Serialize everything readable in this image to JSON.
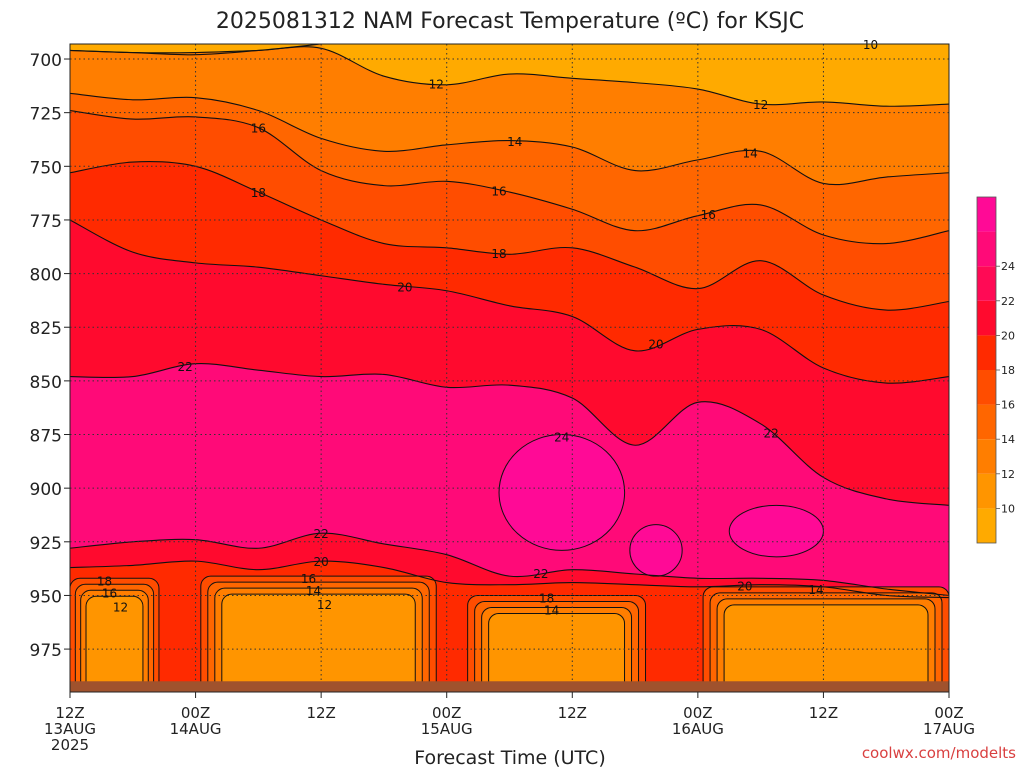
{
  "title": "2025081312 NAM Forecast Temperature (ºC) for KSJC",
  "xlabel": "Forecast Time (UTC)",
  "credit": "coolwx.com/modelts",
  "chart_data": {
    "type": "heatmap",
    "title": "2025081312 NAM Forecast Temperature (ºC) for KSJC",
    "xlabel": "Forecast Time (UTC)",
    "ylabel": "",
    "y_axis": "pressure (hPa), increasing downward",
    "ylim": [
      995,
      693
    ],
    "xlim_hours": [
      0,
      84
    ],
    "grid": true,
    "x_ticks": [
      {
        "h": 0,
        "l1": "12Z",
        "l2": "13AUG",
        "l3": "2025"
      },
      {
        "h": 12,
        "l1": "00Z",
        "l2": "14AUG",
        "l3": ""
      },
      {
        "h": 24,
        "l1": "12Z",
        "l2": "",
        "l3": ""
      },
      {
        "h": 36,
        "l1": "00Z",
        "l2": "15AUG",
        "l3": ""
      },
      {
        "h": 48,
        "l1": "12Z",
        "l2": "",
        "l3": ""
      },
      {
        "h": 60,
        "l1": "00Z",
        "l2": "16AUG",
        "l3": ""
      },
      {
        "h": 72,
        "l1": "12Z",
        "l2": "",
        "l3": ""
      },
      {
        "h": 84,
        "l1": "00Z",
        "l2": "17AUG",
        "l3": ""
      }
    ],
    "y_ticks": [
      700,
      725,
      750,
      775,
      800,
      825,
      850,
      875,
      900,
      925,
      950,
      975
    ],
    "colorbar": {
      "labels": [
        "10",
        "12",
        "14",
        "16",
        "18",
        "20",
        "22",
        "24"
      ],
      "colors": [
        "#ffaa00",
        "#ff9500",
        "#ff7e00",
        "#ff6600",
        "#ff4d00",
        "#ff2a00",
        "#ff0a2e",
        "#ff0a55",
        "#ff0a78",
        "#ff0a96"
      ]
    },
    "contours": [
      {
        "value": 10,
        "label": "10",
        "hours": [
          76.5
        ],
        "p": [
          [
            0,
            696
          ],
          [
            6,
            697
          ],
          [
            12,
            698
          ],
          [
            18,
            696
          ],
          [
            24,
            693
          ]
        ]
      },
      {
        "value": 12,
        "label": "12",
        "hours": [
          35,
          66
        ],
        "p": [
          [
            0,
            696
          ],
          [
            6,
            697
          ],
          [
            12,
            697
          ],
          [
            18,
            696
          ],
          [
            24,
            695
          ],
          [
            30,
            708
          ],
          [
            36,
            712
          ],
          [
            42,
            707
          ],
          [
            48,
            709
          ],
          [
            54,
            711
          ],
          [
            60,
            714
          ],
          [
            66,
            721
          ],
          [
            72,
            720
          ],
          [
            78,
            722
          ],
          [
            84,
            721
          ]
        ]
      },
      {
        "value": 14,
        "label": "14",
        "hours": [
          42.5,
          65
        ],
        "p": [
          [
            0,
            716
          ],
          [
            6,
            719
          ],
          [
            12,
            718
          ],
          [
            18,
            724
          ],
          [
            24,
            737
          ],
          [
            30,
            743
          ],
          [
            36,
            740
          ],
          [
            42,
            738
          ],
          [
            48,
            741
          ],
          [
            54,
            752
          ],
          [
            60,
            747
          ],
          [
            66,
            743
          ],
          [
            72,
            758
          ],
          [
            78,
            755
          ],
          [
            84,
            753
          ]
        ]
      },
      {
        "value": 16,
        "label": "16",
        "hours": [
          18,
          41,
          61
        ],
        "p": [
          [
            0,
            724
          ],
          [
            6,
            728
          ],
          [
            12,
            727
          ],
          [
            18,
            732
          ],
          [
            24,
            752
          ],
          [
            30,
            759
          ],
          [
            36,
            757
          ],
          [
            42,
            762
          ],
          [
            48,
            770
          ],
          [
            54,
            780
          ],
          [
            60,
            773
          ],
          [
            66,
            768
          ],
          [
            72,
            782
          ],
          [
            78,
            786
          ],
          [
            84,
            780
          ]
        ]
      },
      {
        "value": 18,
        "label": "18",
        "hours": [
          18,
          41
        ],
        "p": [
          [
            0,
            753
          ],
          [
            6,
            748
          ],
          [
            12,
            750
          ],
          [
            18,
            762
          ],
          [
            24,
            775
          ],
          [
            30,
            786
          ],
          [
            36,
            788
          ],
          [
            42,
            791
          ],
          [
            48,
            788
          ],
          [
            54,
            797
          ],
          [
            60,
            807
          ],
          [
            66,
            794
          ],
          [
            72,
            810
          ],
          [
            78,
            817
          ],
          [
            84,
            813
          ]
        ]
      },
      {
        "value": 20,
        "label": "20",
        "hours": [
          32,
          56
        ],
        "p": [
          [
            0,
            775
          ],
          [
            6,
            790
          ],
          [
            12,
            795
          ],
          [
            18,
            797
          ],
          [
            24,
            801
          ],
          [
            30,
            805
          ],
          [
            36,
            808
          ],
          [
            42,
            815
          ],
          [
            48,
            820
          ],
          [
            54,
            836
          ],
          [
            60,
            826
          ],
          [
            66,
            826
          ],
          [
            72,
            844
          ],
          [
            78,
            851
          ],
          [
            84,
            848
          ]
        ]
      },
      {
        "value": 22,
        "label": "22",
        "hours": [
          11,
          67
        ],
        "p": [
          [
            0,
            848
          ],
          [
            6,
            848
          ],
          [
            12,
            842
          ],
          [
            18,
            845
          ],
          [
            24,
            848
          ],
          [
            30,
            847
          ],
          [
            36,
            853
          ],
          [
            42,
            852
          ],
          [
            48,
            858
          ],
          [
            54,
            880
          ],
          [
            60,
            860
          ],
          [
            66,
            870
          ],
          [
            72,
            895
          ],
          [
            78,
            905
          ],
          [
            84,
            908
          ]
        ]
      },
      {
        "value": 22,
        "label": "22",
        "hours": [
          24,
          45
        ],
        "p": [
          [
            0,
            928
          ],
          [
            6,
            925
          ],
          [
            12,
            924
          ],
          [
            18,
            928
          ],
          [
            24,
            921
          ],
          [
            30,
            926
          ],
          [
            36,
            931
          ],
          [
            42,
            941
          ],
          [
            48,
            938
          ],
          [
            54,
            940
          ],
          [
            60,
            942
          ],
          [
            66,
            942
          ],
          [
            72,
            943
          ],
          [
            78,
            947
          ],
          [
            84,
            950
          ]
        ]
      },
      {
        "value": 20,
        "label": "20",
        "hours": [
          24,
          64.5
        ],
        "p": [
          [
            0,
            937
          ],
          [
            6,
            936
          ],
          [
            12,
            934
          ],
          [
            18,
            938
          ],
          [
            24,
            934
          ],
          [
            30,
            937
          ],
          [
            36,
            944
          ],
          [
            42,
            945
          ],
          [
            48,
            944
          ],
          [
            54,
            945
          ],
          [
            60,
            946
          ],
          [
            66,
            945
          ],
          [
            72,
            946
          ],
          [
            78,
            950
          ],
          [
            84,
            951
          ]
        ]
      }
    ],
    "warm_cores": [
      {
        "value": 24,
        "label": "24",
        "center_h": 47,
        "center_p": 902,
        "rh": 6,
        "rp": 27
      },
      {
        "value": 24,
        "label": "",
        "center_h": 56,
        "center_p": 929,
        "rh": 2.5,
        "rp": 12
      },
      {
        "value": 24,
        "label": "",
        "center_h": 67.5,
        "center_p": 920,
        "rh": 4.5,
        "rp": 12
      }
    ],
    "cool_pools": [
      {
        "label": "18",
        "label2": "16",
        "label3": "12",
        "h0": 0,
        "h1": 8.5,
        "p_top": 942,
        "inner": "13"
      },
      {
        "label": "16",
        "label2": "14",
        "label3": "12",
        "h0": 12.5,
        "h1": 35,
        "p_top": 941,
        "inner": "12"
      },
      {
        "label": "18",
        "label2": "14",
        "label3": "",
        "h0": 38,
        "h1": 55,
        "p_top": 950,
        "inner": "12"
      },
      {
        "label": "14",
        "label2": "",
        "label3": "",
        "h0": 60.5,
        "h1": 84,
        "p_top": 946,
        "inner": "12"
      }
    ],
    "ground": "terrain below ~990 hPa"
  }
}
